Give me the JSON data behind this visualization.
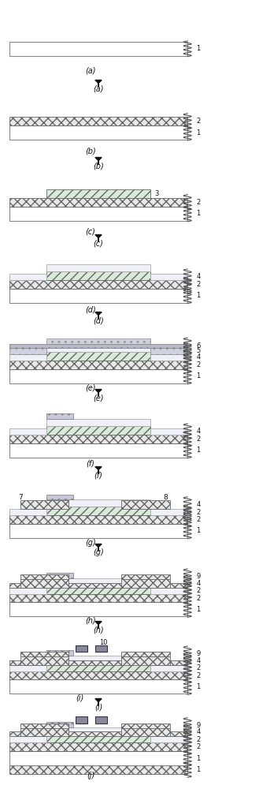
{
  "steps": [
    "(a)",
    "(b)",
    "(c)",
    "(d)",
    "(e)",
    "(f)",
    "(g)",
    "(h)",
    "(i)",
    "(j)"
  ],
  "bg_color": "#ffffff",
  "sub_fc": "#ffffff",
  "sub_ec": "#888888",
  "l1_fc": "#e8e8e8",
  "l1_ec": "#666666",
  "l2_fc": "#d8ead8",
  "l2_ec": "#666666",
  "l3_fc": "#f0eef8",
  "l3_ec": "#999999",
  "l4_fc": "#e8e8f4",
  "l4_ec": "#888888",
  "l5_fc": "#d0d0e0",
  "l5_ec": "#888888",
  "metal_fc": "#c0c0d8",
  "metal_ec": "#555555",
  "pass_fc": "#dde8dd",
  "pass_ec": "#777777",
  "elec_fc": "#888888",
  "elec_ec": "#444444",
  "figsize": [
    3.29,
    10.0
  ],
  "dpi": 100
}
